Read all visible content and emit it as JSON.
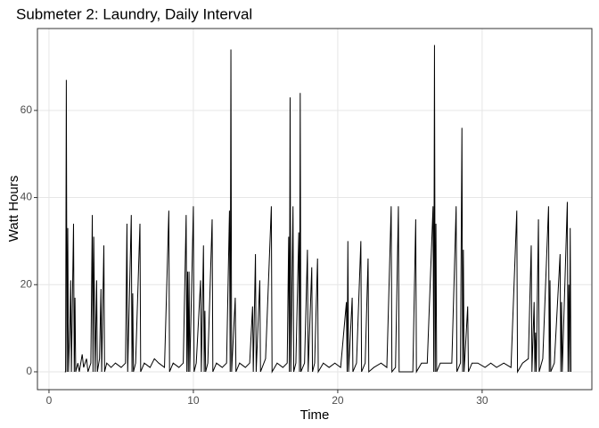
{
  "chart_data": {
    "type": "line",
    "title": "Submeter 2:  Laundry, Daily Interval",
    "x_label": "Time",
    "y_label": "Watt Hours",
    "x": [
      1.1,
      1.15,
      1.2,
      1.25,
      1.3,
      1.35,
      1.45,
      1.5,
      1.55,
      1.7,
      1.75,
      1.8,
      1.85,
      2.0,
      2.1,
      2.3,
      2.4,
      2.6,
      2.7,
      2.9,
      3.0,
      3.05,
      3.1,
      3.2,
      3.3,
      3.35,
      3.5,
      3.6,
      3.65,
      3.8,
      3.85,
      4.0,
      4.3,
      4.6,
      5.0,
      5.3,
      5.4,
      5.45,
      5.7,
      5.75,
      5.8,
      5.85,
      6.0,
      6.3,
      6.35,
      6.6,
      7.0,
      7.3,
      7.6,
      8.0,
      8.3,
      8.35,
      8.6,
      9.0,
      9.3,
      9.5,
      9.55,
      9.6,
      9.65,
      9.7,
      9.75,
      10.0,
      10.05,
      10.2,
      10.5,
      10.55,
      10.7,
      10.75,
      10.8,
      10.85,
      11.0,
      11.3,
      11.35,
      11.6,
      12.0,
      12.3,
      12.5,
      12.55,
      12.6,
      12.65,
      12.9,
      12.95,
      13.2,
      13.6,
      13.9,
      14.1,
      14.15,
      14.3,
      14.35,
      14.6,
      14.65,
      15.0,
      15.4,
      15.45,
      15.8,
      16.2,
      16.5,
      16.6,
      16.65,
      16.7,
      16.75,
      16.9,
      16.95,
      17.1,
      17.3,
      17.35,
      17.4,
      17.45,
      17.7,
      17.9,
      17.95,
      18.2,
      18.25,
      18.4,
      18.6,
      18.65,
      19.0,
      19.4,
      19.8,
      20.2,
      20.6,
      20.65,
      20.7,
      20.75,
      21.0,
      21.05,
      21.3,
      21.6,
      21.65,
      21.9,
      22.1,
      22.15,
      22.5,
      23.0,
      23.4,
      23.7,
      23.75,
      24.0,
      24.2,
      24.25,
      25.2,
      25.4,
      25.45,
      25.8,
      26.2,
      26.6,
      26.65,
      26.7,
      26.75,
      26.8,
      26.85,
      27.1,
      27.5,
      27.9,
      28.2,
      28.25,
      28.5,
      28.6,
      28.65,
      28.7,
      28.75,
      29.0,
      29.05,
      29.3,
      29.7,
      30.2,
      30.6,
      31.0,
      31.5,
      32.0,
      32.4,
      32.45,
      32.8,
      33.2,
      33.4,
      33.45,
      33.6,
      33.65,
      33.7,
      33.75,
      33.9,
      33.95,
      34.2,
      34.6,
      34.65,
      34.7,
      34.75,
      35.0,
      35.4,
      35.45,
      35.5,
      35.55,
      35.9,
      35.95,
      36.0,
      36.05,
      36.1,
      36.15
    ],
    "values": [
      0,
      0,
      67,
      0,
      33,
      0,
      11,
      21,
      0,
      34,
      0,
      17,
      0,
      2,
      0,
      4,
      1,
      3,
      0,
      2,
      36,
      0,
      31,
      0,
      21,
      0,
      3,
      19,
      0,
      29,
      0,
      2,
      1,
      2,
      1,
      2,
      34,
      0,
      36,
      0,
      18,
      0,
      2,
      34,
      0,
      2,
      1,
      3,
      2,
      1,
      37,
      0,
      2,
      1,
      2,
      36,
      0,
      23,
      0,
      23,
      0,
      38,
      0,
      2,
      21,
      0,
      29,
      0,
      14,
      0,
      2,
      35,
      0,
      2,
      1,
      2,
      37,
      0,
      74,
      0,
      17,
      0,
      2,
      1,
      2,
      15,
      0,
      27,
      0,
      21,
      0,
      3,
      38,
      0,
      2,
      1,
      2,
      31,
      0,
      63,
      0,
      38,
      0,
      2,
      32,
      0,
      64,
      0,
      2,
      28,
      0,
      24,
      0,
      2,
      26,
      0,
      2,
      1,
      2,
      1,
      16,
      0,
      30,
      0,
      17,
      0,
      2,
      30,
      0,
      2,
      26,
      0,
      1,
      2,
      1,
      38,
      0,
      1,
      38,
      0,
      0,
      35,
      0,
      2,
      2,
      38,
      0,
      75,
      0,
      34,
      0,
      2,
      2,
      2,
      38,
      0,
      2,
      56,
      0,
      28,
      0,
      15,
      0,
      2,
      2,
      1,
      2,
      1,
      2,
      1,
      37,
      0,
      2,
      3,
      29,
      0,
      16,
      0,
      9,
      0,
      35,
      0,
      3,
      38,
      0,
      21,
      0,
      2,
      27,
      0,
      16,
      0,
      39,
      0,
      20,
      0,
      33,
      0
    ],
    "color": "#000000",
    "xlim": [
      -0.8,
      37.6
    ],
    "ylim": [
      -4.1,
      78.8
    ],
    "xticks": [
      0,
      10,
      20,
      30
    ],
    "yticks": [
      0,
      20,
      40,
      60
    ],
    "grid": true
  }
}
